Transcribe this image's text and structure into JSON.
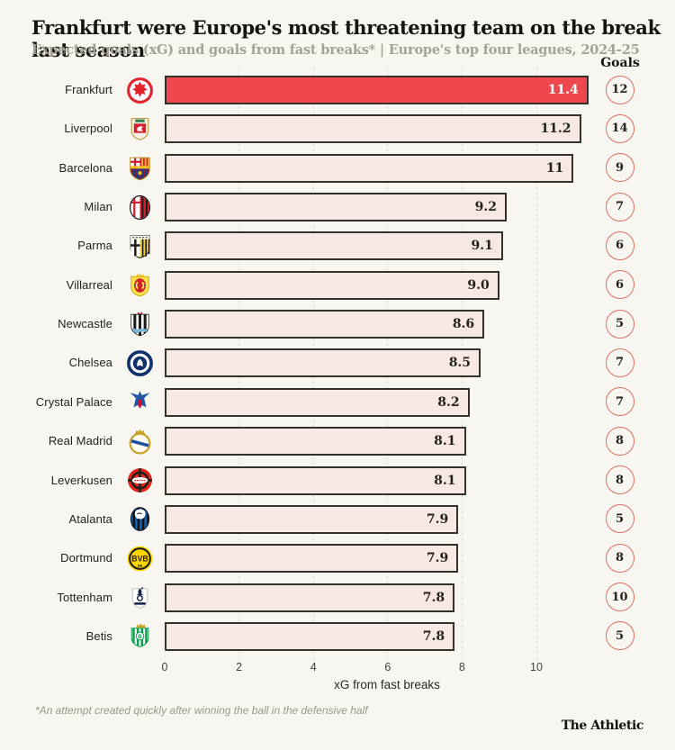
{
  "header": {
    "title": "Frankfurt were Europe's most threatening team on the break last season",
    "subtitle": "Expected goals (xG) and goals from fast breaks* | Europe's top four leagues, 2024-25",
    "goals_label": "Goals"
  },
  "chart_data": {
    "type": "bar",
    "orientation": "horizontal",
    "xlabel": "xG from fast breaks",
    "x_ticks": [
      0,
      2,
      4,
      6,
      8,
      10
    ],
    "xlim": [
      0,
      11.55
    ],
    "grid": "dotted-vertical",
    "highlight_color": "#ee474e",
    "bar_color": "#f8e8e3",
    "rows": [
      {
        "team": "Frankfurt",
        "crest": "frankfurt",
        "xg": 11.4,
        "xg_label": "11.4",
        "goals": "12",
        "highlight": true
      },
      {
        "team": "Liverpool",
        "crest": "liverpool",
        "xg": 11.2,
        "xg_label": "11.2",
        "goals": "14",
        "highlight": false
      },
      {
        "team": "Barcelona",
        "crest": "barcelona",
        "xg": 11.0,
        "xg_label": "11",
        "goals": "9",
        "highlight": false
      },
      {
        "team": "Milan",
        "crest": "milan",
        "xg": 9.2,
        "xg_label": "9.2",
        "goals": "7",
        "highlight": false
      },
      {
        "team": "Parma",
        "crest": "parma",
        "xg": 9.1,
        "xg_label": "9.1",
        "goals": "6",
        "highlight": false
      },
      {
        "team": "Villarreal",
        "crest": "villarreal",
        "xg": 9.0,
        "xg_label": "9.0",
        "goals": "6",
        "highlight": false
      },
      {
        "team": "Newcastle",
        "crest": "newcastle",
        "xg": 8.6,
        "xg_label": "8.6",
        "goals": "5",
        "highlight": false
      },
      {
        "team": "Chelsea",
        "crest": "chelsea",
        "xg": 8.5,
        "xg_label": "8.5",
        "goals": "7",
        "highlight": false
      },
      {
        "team": "Crystal Palace",
        "crest": "crystal-palace",
        "xg": 8.2,
        "xg_label": "8.2",
        "goals": "7",
        "highlight": false
      },
      {
        "team": "Real Madrid",
        "crest": "real-madrid",
        "xg": 8.1,
        "xg_label": "8.1",
        "goals": "8",
        "highlight": false
      },
      {
        "team": "Leverkusen",
        "crest": "leverkusen",
        "xg": 8.1,
        "xg_label": "8.1",
        "goals": "8",
        "highlight": false
      },
      {
        "team": "Atalanta",
        "crest": "atalanta",
        "xg": 7.9,
        "xg_label": "7.9",
        "goals": "5",
        "highlight": false
      },
      {
        "team": "Dortmund",
        "crest": "dortmund",
        "xg": 7.9,
        "xg_label": "7.9",
        "goals": "8",
        "highlight": false
      },
      {
        "team": "Tottenham",
        "crest": "tottenham",
        "xg": 7.8,
        "xg_label": "7.8",
        "goals": "10",
        "highlight": false
      },
      {
        "team": "Betis",
        "crest": "betis",
        "xg": 7.8,
        "xg_label": "7.8",
        "goals": "5",
        "highlight": false
      }
    ]
  },
  "footer": {
    "footnote": "*An attempt created quickly after winning the ball in the defensive half",
    "credit": "The Athletic"
  },
  "colors": {
    "background": "#f7f6f1",
    "bar_fill": "#f8e8e3",
    "bar_highlight": "#ee474e",
    "bar_border": "#34302b",
    "circle_border": "#db7166",
    "text_dark": "#25221d",
    "subtitle_gray": "#a5a198",
    "gridline": "#d9cdc6"
  }
}
